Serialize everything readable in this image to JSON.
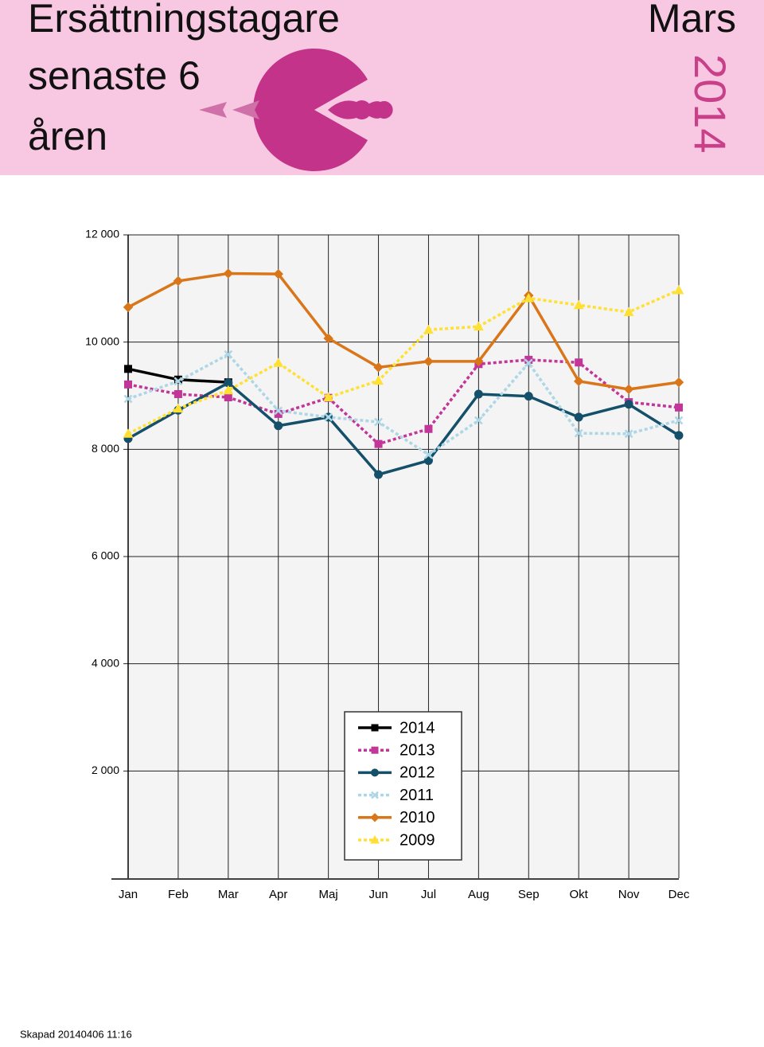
{
  "header": {
    "title_lines": [
      "Ersättningstagare",
      "senaste 6",
      "åren"
    ],
    "month": "Mars",
    "year": "2014"
  },
  "chart_data": {
    "type": "line",
    "categories": [
      "Jan",
      "Feb",
      "Mar",
      "Apr",
      "Maj",
      "Jun",
      "Jul",
      "Aug",
      "Sep",
      "Okt",
      "Nov",
      "Dec"
    ],
    "series": [
      {
        "name": "2014",
        "color": "#000000",
        "marker": "square",
        "dashed": false,
        "values": [
          9500,
          9300,
          9250,
          null,
          null,
          null,
          null,
          null,
          null,
          null,
          null,
          null
        ]
      },
      {
        "name": "2013",
        "color": "#c2369a",
        "marker": "square",
        "dashed": true,
        "values": [
          9210,
          9030,
          8970,
          8660,
          8960,
          8100,
          8380,
          9590,
          9670,
          9620,
          8880,
          8780
        ]
      },
      {
        "name": "2012",
        "color": "#14506a",
        "marker": "circle",
        "dashed": false,
        "values": [
          8200,
          8730,
          9240,
          8440,
          8600,
          7530,
          7790,
          9030,
          8990,
          8600,
          8840,
          8260
        ]
      },
      {
        "name": "2011",
        "color": "#add6e6",
        "marker": "x",
        "dashed": true,
        "values": [
          8940,
          9270,
          9770,
          8720,
          8600,
          8510,
          7900,
          8540,
          9610,
          8300,
          8290,
          8540
        ]
      },
      {
        "name": "2010",
        "color": "#d9761a",
        "marker": "diamond",
        "dashed": false,
        "values": [
          10650,
          11140,
          11280,
          11270,
          10070,
          9530,
          9640,
          9640,
          10870,
          9270,
          9120,
          9250
        ]
      },
      {
        "name": "2009",
        "color": "#ffe033",
        "marker": "triangle",
        "dashed": true,
        "values": [
          8290,
          8760,
          9100,
          9610,
          8970,
          9280,
          10230,
          10290,
          10820,
          10690,
          10560,
          10970
        ]
      }
    ],
    "ylim": [
      0,
      12000
    ],
    "yticks": [
      {
        "value": 2000,
        "label": "2 000"
      },
      {
        "value": 4000,
        "label": "4 000"
      },
      {
        "value": 6000,
        "label": "6 000"
      },
      {
        "value": 8000,
        "label": "8 000"
      },
      {
        "value": 10000,
        "label": "10 000"
      },
      {
        "value": 12000,
        "label": "12 000"
      }
    ],
    "grid": true
  },
  "footer": {
    "text": "Skapad 20140406 11:16"
  }
}
